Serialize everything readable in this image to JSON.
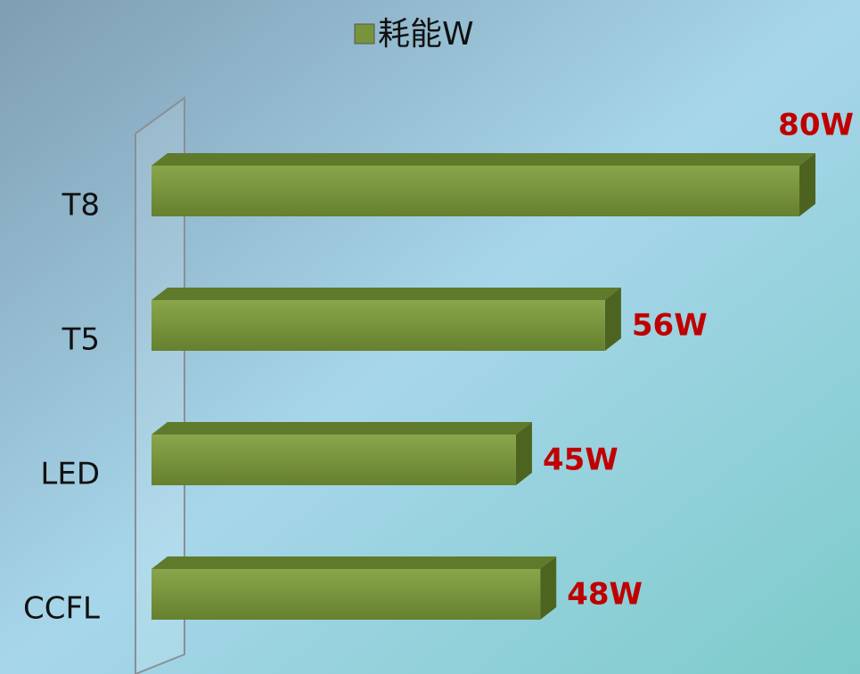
{
  "chart_data": {
    "type": "bar",
    "orientation": "horizontal",
    "legend": "耗能W",
    "color": "#77933c",
    "categories": [
      "T8",
      "T5",
      "LED",
      "CCFL"
    ],
    "values": [
      80,
      56,
      45,
      48
    ],
    "value_labels": [
      "80W",
      "56W",
      "45W",
      "48W"
    ]
  }
}
